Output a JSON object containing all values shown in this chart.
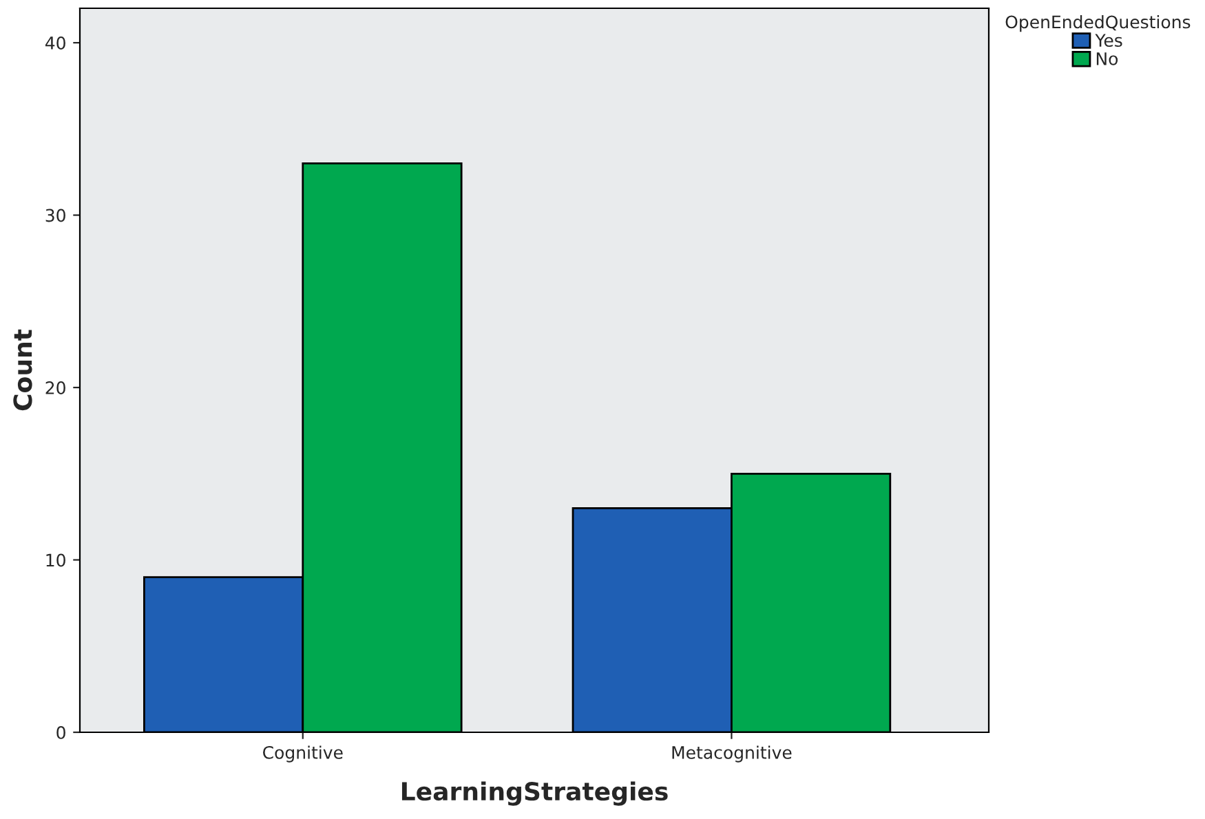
{
  "chart_data": {
    "type": "bar",
    "categories": [
      "Cognitive",
      "Metacognitive"
    ],
    "series": [
      {
        "name": "Yes",
        "color": "#1f5fb4",
        "values": [
          9,
          13
        ]
      },
      {
        "name": "No",
        "color": "#00a84f",
        "values": [
          33,
          15
        ]
      }
    ],
    "xlabel": "LearningStrategies",
    "ylabel": "Count",
    "legend_title": "OpenEndedQuestions",
    "ylim": [
      0,
      42
    ],
    "yticks": [
      0,
      10,
      20,
      30,
      40
    ],
    "grid": false,
    "legend": "top right"
  }
}
